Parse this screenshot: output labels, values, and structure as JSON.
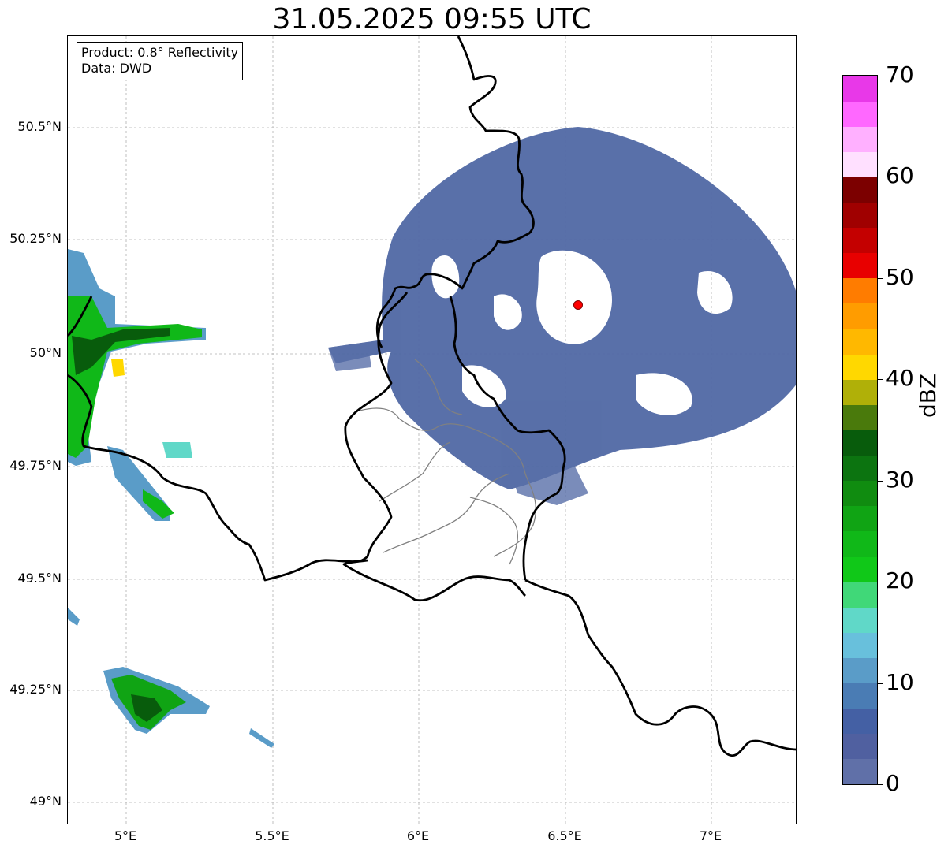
{
  "title": "31.05.2025 09:55 UTC",
  "info": {
    "product": "Product: 0.8° Reflectivity",
    "data": "Data: DWD"
  },
  "lat_labels": [
    "50.5°N",
    "50.25°N",
    "50°N",
    "49.75°N",
    "49.5°N",
    "49.25°N",
    "49°N"
  ],
  "lon_labels": [
    "5°E",
    "5.5°E",
    "6°E",
    "6.5°E",
    "7°E"
  ],
  "colorbar": {
    "label": "dBZ",
    "ticks": [
      "0",
      "10",
      "20",
      "30",
      "40",
      "50",
      "60",
      "70"
    ],
    "colors": [
      "#6070a8",
      "#5060a0",
      "#4460a4",
      "#4a7cb4",
      "#5a9cc8",
      "#68c0dc",
      "#60d8c8",
      "#40d878",
      "#10c818",
      "#10b818",
      "#10a414",
      "#108c10",
      "#0c7410",
      "#085c0c",
      "#4a7a0c",
      "#b0b008",
      "#ffd800",
      "#ffb800",
      "#ff9c00",
      "#ff7c00",
      "#e80000",
      "#c40000",
      "#a00000",
      "#7c0000",
      "#ffe0ff",
      "#ffb0ff",
      "#ff68ff",
      "#e838e8"
    ]
  },
  "radar_site": {
    "lat": 50.11,
    "lon": 6.55
  },
  "colors": {
    "echo_weak": "#5068a4",
    "echo_green": "#20b020",
    "border": "#000000",
    "admin_border": "#808080",
    "radar_marker": "#ff0000"
  }
}
